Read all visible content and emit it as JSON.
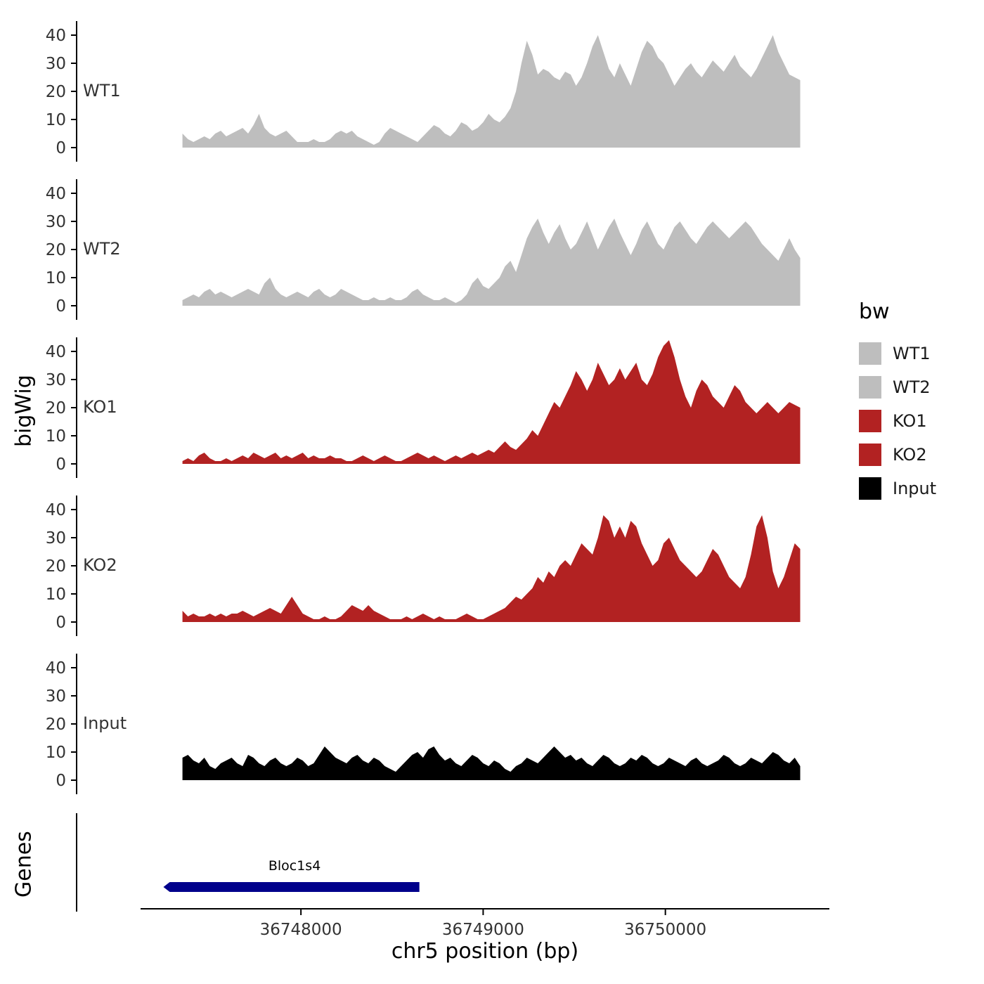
{
  "y_axis_title": "bigWig",
  "genes_panel_label": "Genes",
  "colors": {
    "wt_gray": "#bebebe",
    "ko_red": "#b22222",
    "input_black": "#000000",
    "gene_navy": "#00008b",
    "axis": "#000000",
    "tick_text": "#333333"
  },
  "legend": {
    "title": "bw",
    "items": [
      {
        "label": "WT1",
        "color": "#bebebe"
      },
      {
        "label": "WT2",
        "color": "#bebebe"
      },
      {
        "label": "KO1",
        "color": "#b22222"
      },
      {
        "label": "KO2",
        "color": "#b22222"
      },
      {
        "label": "Input",
        "color": "#000000"
      }
    ]
  },
  "chart_data": {
    "type": "area",
    "title": "",
    "xlabel": "chr5 position (bp)",
    "ylabel": "bigWig",
    "x_domain": [
      36747120,
      36750900
    ],
    "x_ticks": [
      36748000,
      36749000,
      36750000
    ],
    "y_ticks": [
      0,
      10,
      20,
      30,
      40
    ],
    "ylim": [
      0,
      45
    ],
    "grid": false,
    "legend_position": "right",
    "x_start": 36747350,
    "x_step": 30,
    "tracks": [
      {
        "name": "WT1",
        "color": "#bebebe",
        "values": [
          5,
          3,
          2,
          3,
          4,
          3,
          5,
          6,
          4,
          5,
          6,
          7,
          5,
          8,
          12,
          7,
          5,
          4,
          5,
          6,
          4,
          2,
          2,
          2,
          3,
          2,
          2,
          3,
          5,
          6,
          5,
          6,
          4,
          3,
          2,
          1,
          2,
          5,
          7,
          6,
          5,
          4,
          3,
          2,
          4,
          6,
          8,
          7,
          5,
          4,
          6,
          9,
          8,
          6,
          7,
          9,
          12,
          10,
          9,
          11,
          14,
          20,
          30,
          38,
          33,
          26,
          28,
          27,
          25,
          24,
          27,
          26,
          22,
          25,
          30,
          36,
          40,
          34,
          28,
          25,
          30,
          26,
          22,
          28,
          34,
          38,
          36,
          32,
          30,
          26,
          22,
          25,
          28,
          30,
          27,
          25,
          28,
          31,
          29,
          27,
          30,
          33,
          29,
          27,
          25,
          28,
          32,
          36,
          40,
          34,
          30,
          26,
          25,
          24
        ]
      },
      {
        "name": "WT2",
        "color": "#bebebe",
        "values": [
          2,
          3,
          4,
          3,
          5,
          6,
          4,
          5,
          4,
          3,
          4,
          5,
          6,
          5,
          4,
          8,
          10,
          6,
          4,
          3,
          4,
          5,
          4,
          3,
          5,
          6,
          4,
          3,
          4,
          6,
          5,
          4,
          3,
          2,
          2,
          3,
          2,
          2,
          3,
          2,
          2,
          3,
          5,
          6,
          4,
          3,
          2,
          2,
          3,
          2,
          1,
          2,
          4,
          8,
          10,
          7,
          6,
          8,
          10,
          14,
          16,
          12,
          18,
          24,
          28,
          31,
          26,
          22,
          26,
          29,
          24,
          20,
          22,
          26,
          30,
          25,
          20,
          24,
          28,
          31,
          26,
          22,
          18,
          22,
          27,
          30,
          26,
          22,
          20,
          24,
          28,
          30,
          27,
          24,
          22,
          25,
          28,
          30,
          28,
          26,
          24,
          26,
          28,
          30,
          28,
          25,
          22,
          20,
          18,
          16,
          20,
          24,
          20,
          17
        ]
      },
      {
        "name": "KO1",
        "color": "#b22222",
        "values": [
          1,
          2,
          1,
          3,
          4,
          2,
          1,
          1,
          2,
          1,
          2,
          3,
          2,
          4,
          3,
          2,
          3,
          4,
          2,
          3,
          2,
          3,
          4,
          2,
          3,
          2,
          2,
          3,
          2,
          2,
          1,
          1,
          2,
          3,
          2,
          1,
          2,
          3,
          2,
          1,
          1,
          2,
          3,
          4,
          3,
          2,
          3,
          2,
          1,
          2,
          3,
          2,
          3,
          4,
          3,
          4,
          5,
          4,
          6,
          8,
          6,
          5,
          7,
          9,
          12,
          10,
          14,
          18,
          22,
          20,
          24,
          28,
          33,
          30,
          26,
          30,
          36,
          32,
          28,
          30,
          34,
          30,
          33,
          36,
          30,
          28,
          32,
          38,
          42,
          44,
          38,
          30,
          24,
          20,
          26,
          30,
          28,
          24,
          22,
          20,
          24,
          28,
          26,
          22,
          20,
          18,
          20,
          22,
          20,
          18,
          20,
          22,
          21,
          20
        ]
      },
      {
        "name": "KO2",
        "color": "#b22222",
        "values": [
          4,
          2,
          3,
          2,
          2,
          3,
          2,
          3,
          2,
          3,
          3,
          4,
          3,
          2,
          3,
          4,
          5,
          4,
          3,
          6,
          9,
          6,
          3,
          2,
          1,
          1,
          2,
          1,
          1,
          2,
          4,
          6,
          5,
          4,
          6,
          4,
          3,
          2,
          1,
          1,
          1,
          2,
          1,
          2,
          3,
          2,
          1,
          2,
          1,
          1,
          1,
          2,
          3,
          2,
          1,
          1,
          2,
          3,
          4,
          5,
          7,
          9,
          8,
          10,
          12,
          16,
          14,
          18,
          16,
          20,
          22,
          20,
          24,
          28,
          26,
          24,
          30,
          38,
          36,
          30,
          34,
          30,
          36,
          34,
          28,
          24,
          20,
          22,
          28,
          30,
          26,
          22,
          20,
          18,
          16,
          18,
          22,
          26,
          24,
          20,
          16,
          14,
          12,
          16,
          24,
          34,
          38,
          30,
          18,
          12,
          16,
          22,
          28,
          26
        ]
      },
      {
        "name": "Input",
        "color": "#000000",
        "values": [
          8,
          9,
          7,
          6,
          8,
          5,
          4,
          6,
          7,
          8,
          6,
          5,
          9,
          8,
          6,
          5,
          7,
          8,
          6,
          5,
          6,
          8,
          7,
          5,
          6,
          9,
          12,
          10,
          8,
          7,
          6,
          8,
          9,
          7,
          6,
          8,
          7,
          5,
          4,
          3,
          5,
          7,
          9,
          10,
          8,
          11,
          12,
          9,
          7,
          8,
          6,
          5,
          7,
          9,
          8,
          6,
          5,
          7,
          6,
          4,
          3,
          5,
          6,
          8,
          7,
          6,
          8,
          10,
          12,
          10,
          8,
          9,
          7,
          8,
          6,
          5,
          7,
          9,
          8,
          6,
          5,
          6,
          8,
          7,
          9,
          8,
          6,
          5,
          6,
          8,
          7,
          6,
          5,
          7,
          8,
          6,
          5,
          6,
          7,
          9,
          8,
          6,
          5,
          6,
          8,
          7,
          6,
          8,
          10,
          9,
          7,
          6,
          8,
          5
        ]
      }
    ],
    "genes": [
      {
        "name": "Bloc1s4",
        "start": 36747280,
        "end": 36748650,
        "strand": "-",
        "color": "#00008b"
      }
    ]
  }
}
